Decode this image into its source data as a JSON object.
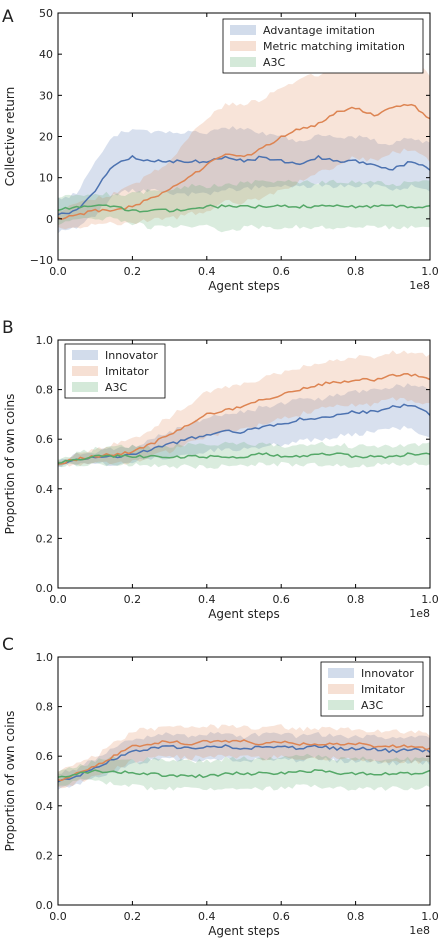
{
  "chart_data": [
    {
      "type": "line",
      "panel": "A",
      "xlabel": "Agent steps",
      "ylabel": "Collective return",
      "x_multiplier": "1e8",
      "xlim": [
        0,
        1.0
      ],
      "ylim": [
        -10,
        50
      ],
      "xticks": [
        0.0,
        0.2,
        0.4,
        0.6,
        0.8,
        1.0
      ],
      "xtick_labels": [
        "0.0",
        "0.2",
        "0.4",
        "0.6",
        "0.8",
        "1.0"
      ],
      "yticks": [
        -10,
        0,
        10,
        20,
        30,
        40,
        50
      ],
      "ytick_labels": [
        "−10",
        "0",
        "10",
        "20",
        "30",
        "40",
        "50"
      ],
      "legend_position": "top-right",
      "x": [
        0,
        0.05,
        0.1,
        0.15,
        0.2,
        0.25,
        0.3,
        0.35,
        0.4,
        0.45,
        0.5,
        0.55,
        0.6,
        0.65,
        0.7,
        0.75,
        0.8,
        0.85,
        0.9,
        0.95,
        1.0
      ],
      "series": [
        {
          "name": "Advantage imitation",
          "color": "#4c72b0",
          "values": [
            1,
            2,
            7,
            13,
            15,
            14,
            14,
            14,
            14,
            15,
            14,
            15,
            14,
            13,
            15,
            14,
            14,
            13,
            12,
            14,
            12
          ],
          "lower": [
            -3,
            -2,
            1,
            6,
            7,
            7,
            6,
            6,
            6,
            7,
            7,
            8,
            8,
            8,
            8,
            8,
            8,
            8,
            7,
            8,
            7
          ],
          "upper": [
            5,
            6,
            14,
            20,
            22,
            21,
            21,
            21,
            21,
            22,
            22,
            21,
            20,
            19,
            20,
            20,
            20,
            19,
            18,
            20,
            18
          ]
        },
        {
          "name": "Metric matching imitation",
          "color": "#dd8452",
          "values": [
            0,
            1,
            2,
            2,
            3,
            5,
            7,
            10,
            13,
            16,
            15,
            17,
            20,
            22,
            23,
            26,
            27,
            25,
            27,
            28,
            24
          ],
          "lower": [
            -2,
            -2,
            -1,
            -1,
            -1,
            0,
            0,
            1,
            2,
            4,
            4,
            5,
            7,
            9,
            11,
            13,
            15,
            14,
            16,
            17,
            14
          ],
          "upper": [
            2,
            4,
            5,
            6,
            8,
            11,
            14,
            20,
            24,
            28,
            28,
            29,
            32,
            34,
            35,
            38,
            38,
            37,
            37,
            39,
            35
          ]
        },
        {
          "name": "A3C",
          "color": "#55a868",
          "values": [
            2,
            3,
            3,
            3,
            2,
            2,
            2,
            2,
            3,
            3,
            3,
            3,
            3,
            3,
            3,
            3,
            3,
            3,
            3,
            3,
            3
          ],
          "lower": [
            -1,
            0,
            0,
            0,
            -1,
            -2,
            -2,
            -2,
            -2,
            -3,
            -2,
            -2,
            -2,
            -2,
            -2,
            -2,
            -2,
            -2,
            -2,
            -2,
            -2
          ],
          "upper": [
            5,
            6,
            6,
            6,
            6,
            7,
            7,
            8,
            8,
            8,
            9,
            9,
            9,
            9,
            9,
            9,
            9,
            9,
            8,
            9,
            9
          ]
        }
      ]
    },
    {
      "type": "line",
      "panel": "B",
      "xlabel": "Agent steps",
      "ylabel": "Proportion of own coins",
      "x_multiplier": "1e8",
      "xlim": [
        0,
        1.0
      ],
      "ylim": [
        0,
        1.0
      ],
      "xticks": [
        0.0,
        0.2,
        0.4,
        0.6,
        0.8,
        1.0
      ],
      "xtick_labels": [
        "0.0",
        "0.2",
        "0.4",
        "0.6",
        "0.8",
        "1.0"
      ],
      "yticks": [
        0.0,
        0.2,
        0.4,
        0.6,
        0.8,
        1.0
      ],
      "ytick_labels": [
        "0.0",
        "0.2",
        "0.4",
        "0.6",
        "0.8",
        "1.0"
      ],
      "legend_position": "top-left",
      "x": [
        0,
        0.05,
        0.1,
        0.15,
        0.2,
        0.25,
        0.3,
        0.35,
        0.4,
        0.45,
        0.5,
        0.55,
        0.6,
        0.65,
        0.7,
        0.75,
        0.8,
        0.85,
        0.9,
        0.95,
        1.0
      ],
      "series": [
        {
          "name": "Innovator",
          "color": "#4c72b0",
          "values": [
            0.5,
            0.52,
            0.53,
            0.53,
            0.54,
            0.56,
            0.58,
            0.6,
            0.62,
            0.63,
            0.63,
            0.65,
            0.66,
            0.68,
            0.68,
            0.7,
            0.71,
            0.71,
            0.73,
            0.74,
            0.7
          ],
          "lower": [
            0.49,
            0.5,
            0.5,
            0.5,
            0.51,
            0.52,
            0.53,
            0.54,
            0.55,
            0.56,
            0.56,
            0.57,
            0.58,
            0.59,
            0.6,
            0.61,
            0.62,
            0.63,
            0.64,
            0.65,
            0.6
          ],
          "upper": [
            0.51,
            0.54,
            0.55,
            0.56,
            0.57,
            0.6,
            0.63,
            0.66,
            0.69,
            0.7,
            0.71,
            0.73,
            0.74,
            0.76,
            0.76,
            0.78,
            0.79,
            0.8,
            0.81,
            0.82,
            0.8
          ]
        },
        {
          "name": "Imitator",
          "color": "#dd8452",
          "values": [
            0.5,
            0.52,
            0.53,
            0.54,
            0.55,
            0.58,
            0.62,
            0.66,
            0.7,
            0.72,
            0.73,
            0.76,
            0.78,
            0.8,
            0.82,
            0.83,
            0.84,
            0.84,
            0.86,
            0.86,
            0.84
          ],
          "lower": [
            0.49,
            0.5,
            0.5,
            0.5,
            0.51,
            0.53,
            0.55,
            0.58,
            0.61,
            0.63,
            0.64,
            0.66,
            0.68,
            0.7,
            0.72,
            0.73,
            0.74,
            0.74,
            0.76,
            0.76,
            0.74
          ],
          "upper": [
            0.51,
            0.54,
            0.56,
            0.58,
            0.6,
            0.64,
            0.69,
            0.74,
            0.79,
            0.81,
            0.82,
            0.85,
            0.87,
            0.89,
            0.91,
            0.92,
            0.93,
            0.93,
            0.95,
            0.95,
            0.94
          ]
        },
        {
          "name": "A3C",
          "color": "#55a868",
          "values": [
            0.5,
            0.52,
            0.53,
            0.53,
            0.53,
            0.53,
            0.53,
            0.53,
            0.53,
            0.53,
            0.53,
            0.54,
            0.53,
            0.53,
            0.54,
            0.54,
            0.53,
            0.53,
            0.53,
            0.54,
            0.54
          ],
          "lower": [
            0.49,
            0.5,
            0.5,
            0.5,
            0.5,
            0.49,
            0.49,
            0.49,
            0.49,
            0.49,
            0.49,
            0.5,
            0.5,
            0.49,
            0.5,
            0.5,
            0.49,
            0.5,
            0.5,
            0.5,
            0.5
          ],
          "upper": [
            0.51,
            0.54,
            0.56,
            0.57,
            0.57,
            0.57,
            0.57,
            0.58,
            0.58,
            0.58,
            0.58,
            0.58,
            0.57,
            0.57,
            0.58,
            0.58,
            0.57,
            0.57,
            0.57,
            0.58,
            0.58
          ]
        }
      ]
    },
    {
      "type": "line",
      "panel": "C",
      "xlabel": "Agent steps",
      "ylabel": "Proportion of own coins",
      "x_multiplier": "1e8",
      "xlim": [
        0,
        1.0
      ],
      "ylim": [
        0,
        1.0
      ],
      "xticks": [
        0.0,
        0.2,
        0.4,
        0.6,
        0.8,
        1.0
      ],
      "xtick_labels": [
        "0.0",
        "0.2",
        "0.4",
        "0.6",
        "0.8",
        "1.0"
      ],
      "yticks": [
        0.0,
        0.2,
        0.4,
        0.6,
        0.8,
        1.0
      ],
      "ytick_labels": [
        "0.0",
        "0.2",
        "0.4",
        "0.6",
        "0.8",
        "1.0"
      ],
      "legend_position": "top-right",
      "x": [
        0,
        0.05,
        0.1,
        0.15,
        0.2,
        0.25,
        0.3,
        0.35,
        0.4,
        0.45,
        0.5,
        0.55,
        0.6,
        0.65,
        0.7,
        0.75,
        0.8,
        0.85,
        0.9,
        0.95,
        1.0
      ],
      "series": [
        {
          "name": "Innovator",
          "color": "#4c72b0",
          "values": [
            0.5,
            0.52,
            0.55,
            0.59,
            0.62,
            0.63,
            0.64,
            0.63,
            0.64,
            0.64,
            0.63,
            0.64,
            0.64,
            0.63,
            0.64,
            0.63,
            0.63,
            0.63,
            0.62,
            0.63,
            0.62
          ],
          "lower": [
            0.47,
            0.49,
            0.51,
            0.54,
            0.57,
            0.58,
            0.59,
            0.58,
            0.59,
            0.59,
            0.58,
            0.59,
            0.59,
            0.58,
            0.59,
            0.58,
            0.58,
            0.58,
            0.57,
            0.58,
            0.57
          ],
          "upper": [
            0.53,
            0.55,
            0.59,
            0.64,
            0.67,
            0.68,
            0.69,
            0.68,
            0.69,
            0.69,
            0.68,
            0.69,
            0.69,
            0.68,
            0.69,
            0.68,
            0.68,
            0.68,
            0.67,
            0.68,
            0.67
          ]
        },
        {
          "name": "Imitator",
          "color": "#dd8452",
          "values": [
            0.5,
            0.53,
            0.56,
            0.6,
            0.64,
            0.65,
            0.66,
            0.65,
            0.66,
            0.66,
            0.66,
            0.65,
            0.66,
            0.65,
            0.65,
            0.65,
            0.65,
            0.64,
            0.64,
            0.64,
            0.63
          ],
          "lower": [
            0.47,
            0.49,
            0.52,
            0.55,
            0.58,
            0.59,
            0.6,
            0.59,
            0.6,
            0.6,
            0.6,
            0.59,
            0.6,
            0.59,
            0.59,
            0.59,
            0.59,
            0.58,
            0.58,
            0.58,
            0.57
          ],
          "upper": [
            0.53,
            0.57,
            0.6,
            0.65,
            0.7,
            0.71,
            0.72,
            0.71,
            0.72,
            0.72,
            0.72,
            0.71,
            0.72,
            0.71,
            0.71,
            0.71,
            0.71,
            0.7,
            0.7,
            0.7,
            0.69
          ]
        },
        {
          "name": "A3C",
          "color": "#55a868",
          "values": [
            0.51,
            0.53,
            0.54,
            0.54,
            0.53,
            0.53,
            0.52,
            0.52,
            0.52,
            0.53,
            0.53,
            0.53,
            0.53,
            0.54,
            0.54,
            0.53,
            0.53,
            0.53,
            0.53,
            0.53,
            0.54
          ],
          "lower": [
            0.48,
            0.5,
            0.5,
            0.49,
            0.48,
            0.47,
            0.47,
            0.47,
            0.47,
            0.47,
            0.47,
            0.47,
            0.47,
            0.48,
            0.48,
            0.47,
            0.47,
            0.47,
            0.47,
            0.47,
            0.48
          ],
          "upper": [
            0.54,
            0.56,
            0.58,
            0.59,
            0.58,
            0.59,
            0.58,
            0.58,
            0.58,
            0.59,
            0.59,
            0.59,
            0.59,
            0.6,
            0.6,
            0.59,
            0.59,
            0.59,
            0.59,
            0.59,
            0.6
          ]
        }
      ]
    }
  ]
}
